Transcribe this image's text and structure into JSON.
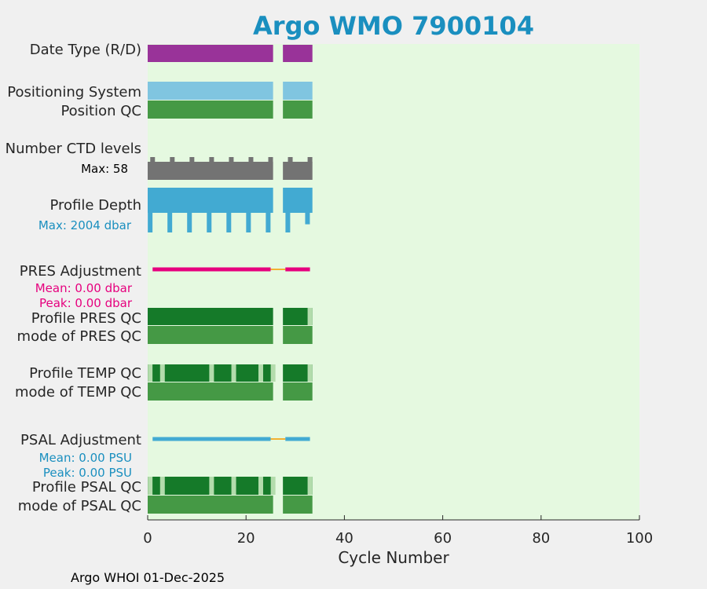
{
  "chart_data": {
    "type": "bar",
    "title": "Argo WMO 7900104",
    "xlabel": "Cycle Number",
    "xlim": [
      0,
      100
    ],
    "xticks": [
      "0",
      "20",
      "40",
      "60",
      "80",
      "100"
    ],
    "footer": "Argo WHOI 01-Dec-2025",
    "row_labels": {
      "date_type": "Date Type (R/D)",
      "positioning_system": "Positioning System",
      "position_qc": "Position QC",
      "ctd_levels": "Number CTD levels",
      "profile_depth": "Profile Depth",
      "pres_adjustment": "PRES Adjustment",
      "profile_pres_qc": "Profile PRES QC",
      "mode_pres_qc": "mode of PRES QC",
      "profile_temp_qc": "Profile TEMP QC",
      "mode_temp_qc": "mode of TEMP QC",
      "psal_adjustment": "PSAL Adjustment",
      "profile_psal_qc": "Profile PSAL QC",
      "mode_psal_qc": "mode of PSAL QC"
    },
    "annotations": {
      "ctd_max": "Max: 58",
      "depth_max": "Max: 2004 dbar",
      "pres_mean": "Mean: 0.00 dbar",
      "pres_peak": "Peak: 0.00 dbar",
      "psal_mean": "Mean: 0.00 PSU",
      "psal_peak": "Peak: 0.00 PSU"
    },
    "cycle_segments": [
      [
        0,
        25.5
      ],
      [
        27.5,
        33.5
      ]
    ],
    "ctd_bump_cycles": [
      1,
      5,
      9,
      13,
      17,
      21,
      25,
      29,
      33
    ],
    "depth_dip_cycles": [
      {
        "cycle": 0.5,
        "len": 1
      },
      {
        "cycle": 4.5,
        "len": 1
      },
      {
        "cycle": 8.5,
        "len": 1
      },
      {
        "cycle": 12.5,
        "len": 1
      },
      {
        "cycle": 16.5,
        "len": 1
      },
      {
        "cycle": 20.5,
        "len": 1
      },
      {
        "cycle": 24.5,
        "len": 1
      },
      {
        "cycle": 28.5,
        "len": 1
      },
      {
        "cycle": 32.5,
        "len": 0.6
      }
    ],
    "adjustment_segments": [
      {
        "from": 1,
        "to": 25,
        "kind": "main"
      },
      {
        "from": 25,
        "to": 28,
        "kind": "gap"
      },
      {
        "from": 28,
        "to": 33,
        "kind": "main"
      }
    ],
    "qc_light_cycles_temp_psal": [
      0.5,
      3,
      13,
      17.5,
      23,
      25.5,
      33
    ],
    "qc_light_cycles_pres": [
      33
    ],
    "colors": {
      "background": "#e5f9e0",
      "date_type": "#993399",
      "positioning": "#80c5e0",
      "qc_good": "#459945",
      "qc_dark": "#157a29",
      "qc_light": "#b3dcac",
      "ctd": "#737373",
      "depth": "#42aad2",
      "pres_adj": "#e6007e",
      "psal_adj": "#42aad2",
      "adj_gap": "#f2b233"
    }
  }
}
